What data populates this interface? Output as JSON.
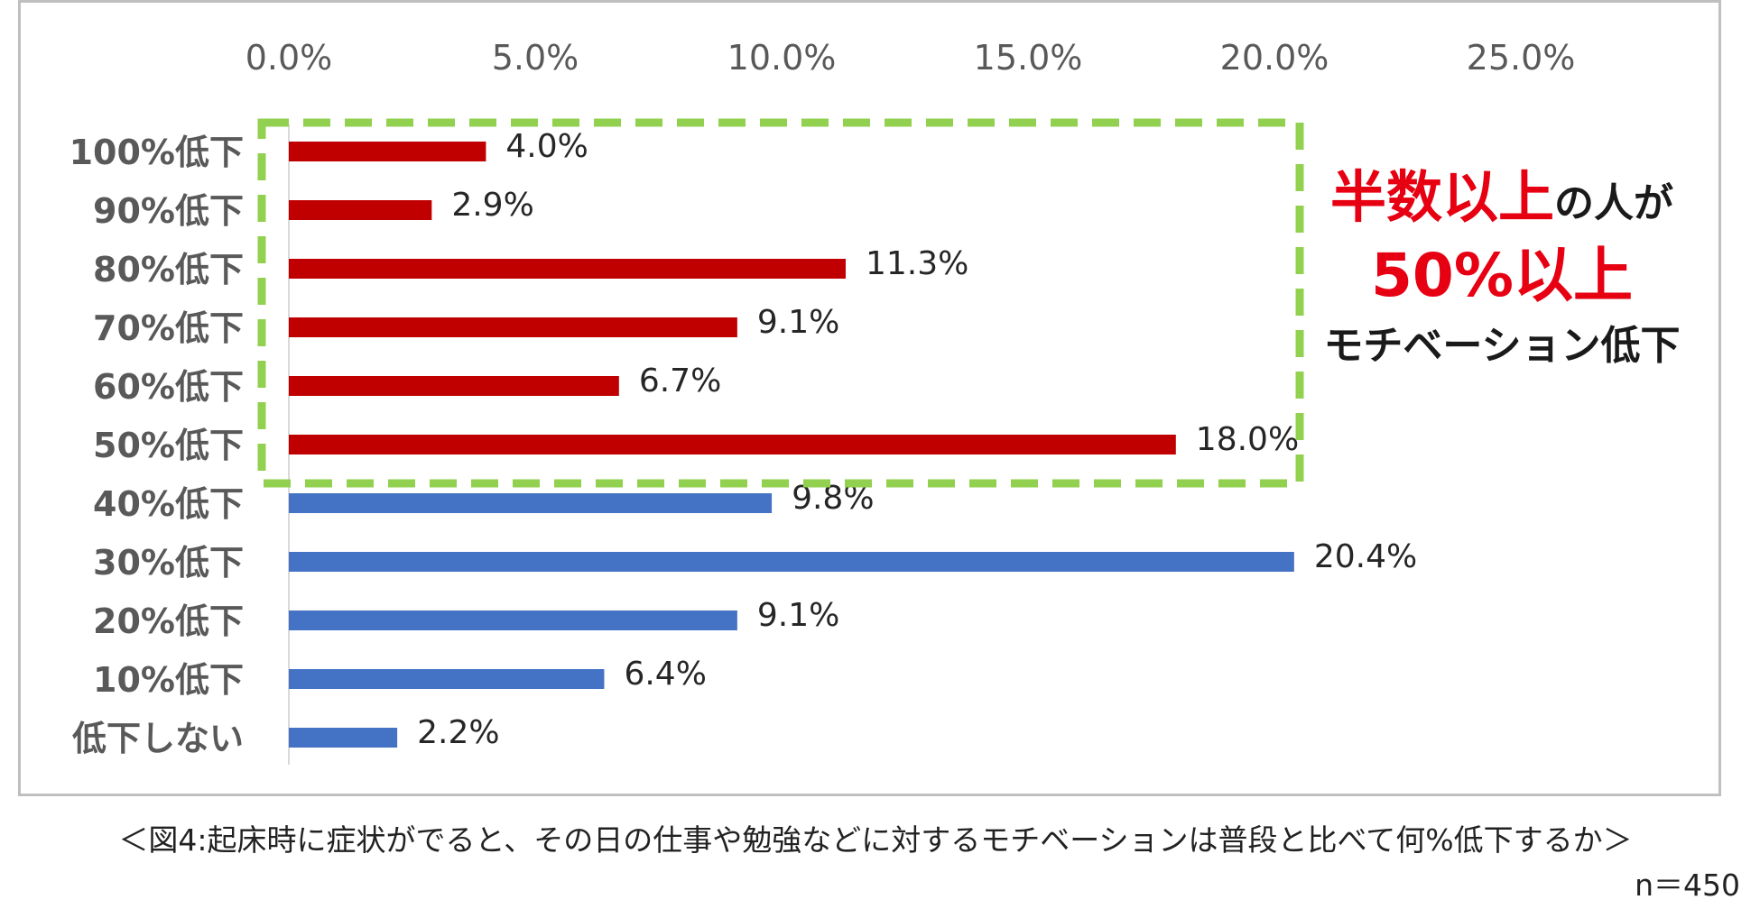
{
  "chart_data": {
    "type": "bar",
    "orientation": "horizontal",
    "categories": [
      "100%低下",
      "90%低下",
      "80%低下",
      "70%低下",
      "60%低下",
      "50%低下",
      "40%低下",
      "30%低下",
      "20%低下",
      "10%低下",
      "低下しない"
    ],
    "values": [
      4.0,
      2.9,
      11.3,
      9.1,
      6.7,
      18.0,
      9.8,
      20.4,
      9.1,
      6.4,
      2.2
    ],
    "value_labels": [
      "4.0%",
      "2.9%",
      "11.3%",
      "9.1%",
      "6.7%",
      "18.0%",
      "9.8%",
      "20.4%",
      "9.1%",
      "6.4%",
      "2.2%"
    ],
    "xlim": [
      0,
      25
    ],
    "x_ticks": [
      "0.0%",
      "5.0%",
      "10.0%",
      "15.0%",
      "20.0%",
      "25.0%"
    ],
    "x_axis_position": "top",
    "grid": false,
    "highlight_first_n": 6,
    "colors": {
      "highlight": "#c00000",
      "normal": "#4472c4",
      "box": "#92d050",
      "annot_red": "#e60012",
      "annot_black": "#1a1a1a"
    },
    "annotation": {
      "line1_red": "半数以上",
      "line1_black": "の人が",
      "line2_red": "50%以上",
      "line3_black": "モチベーション低下"
    }
  },
  "caption": "＜図4:起床時に症状がでると、その日の仕事や勉強などに対するモチベーションは普段と比べて何%低下するか＞",
  "sample_size": "n＝450"
}
